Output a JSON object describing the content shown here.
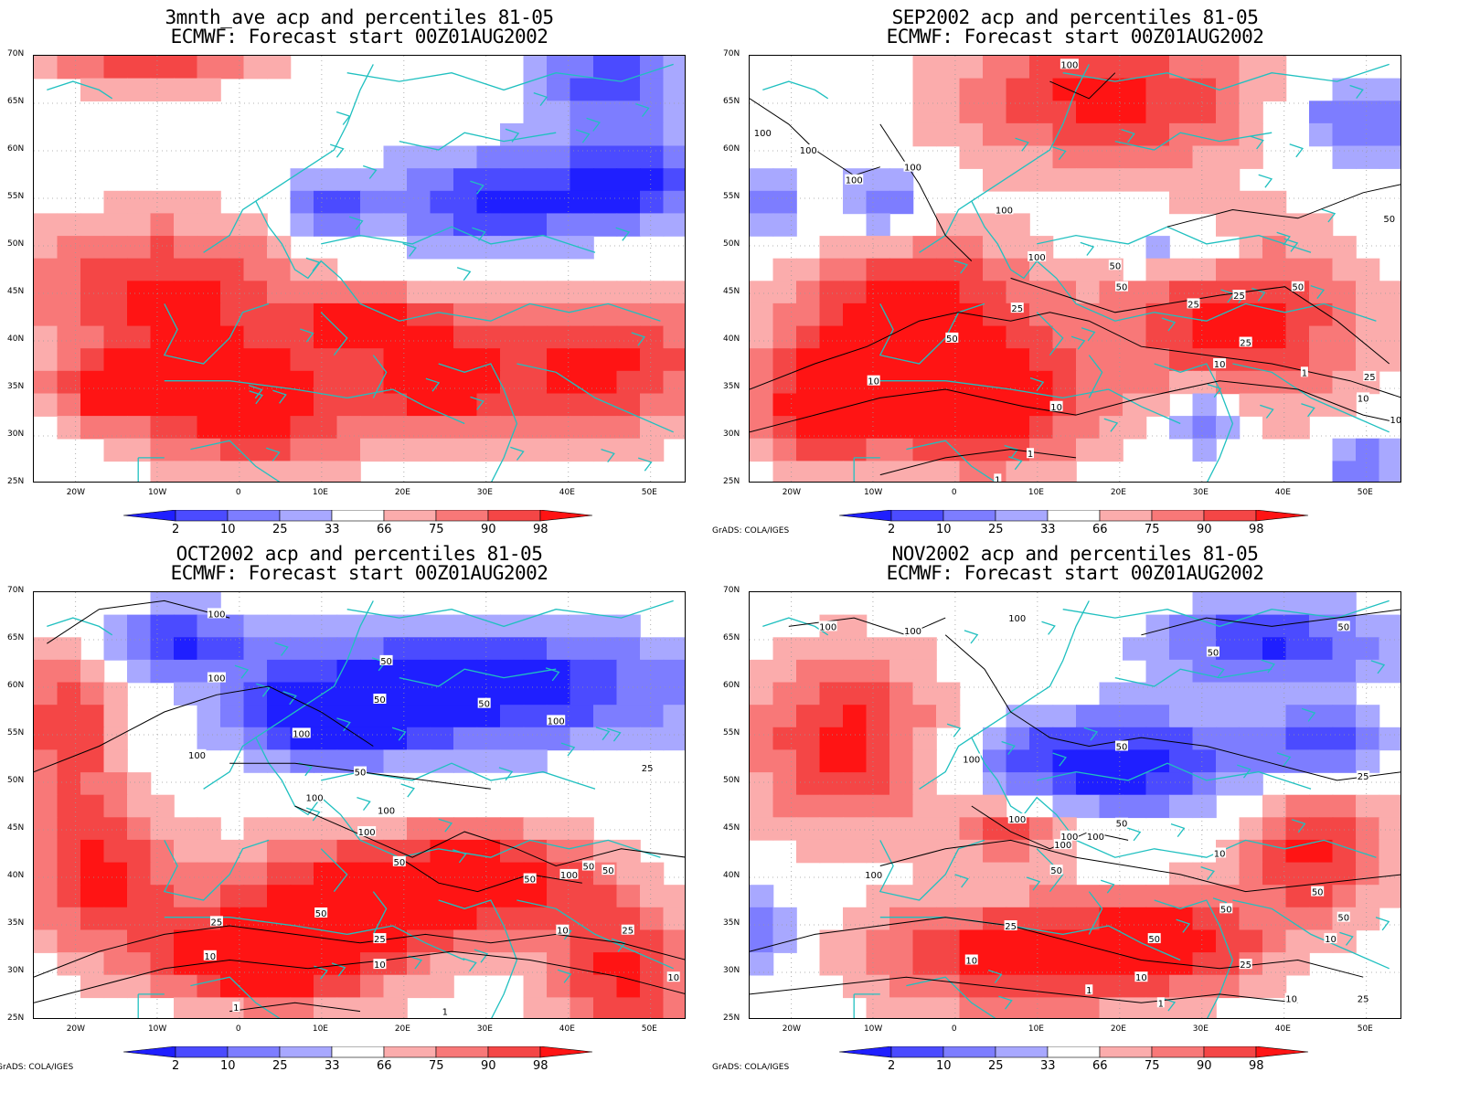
{
  "legend_labels": [
    "2",
    "10",
    "25",
    "33",
    "66",
    "75",
    "90",
    "98"
  ],
  "legend_colors": [
    "#1f1fff",
    "#4b4bff",
    "#7d7dff",
    "#a8a8ff",
    "#ffffff",
    "#fbacac",
    "#f87878",
    "#f44646",
    "#ff1414"
  ],
  "lat_labels": [
    "70N",
    "65N",
    "60N",
    "55N",
    "50N",
    "45N",
    "40N",
    "35N",
    "30N",
    "25N"
  ],
  "lon_labels": [
    "20W",
    "10W",
    "0",
    "10E",
    "20E",
    "30E",
    "40E",
    "50E"
  ],
  "credit": "GrADS: COLA/IGES",
  "panels": [
    {
      "title1": "3mnth_ave acp and percentiles 81-05",
      "title2": "ECMWF: Forecast start 00Z01AUG2002",
      "contour_labels": []
    },
    {
      "title1": "SEP2002 acp and percentiles 81-05",
      "title2": "ECMWF: Forecast start 00Z01AUG2002",
      "contour_labels": [
        "100",
        "100",
        "100",
        "100",
        "100",
        "100",
        "100",
        "50",
        "50",
        "50",
        "50",
        "25",
        "25",
        "25",
        "25",
        "10",
        "10",
        "10",
        "10",
        "1",
        "1",
        "1",
        "50",
        "25",
        "10"
      ]
    },
    {
      "title1": "OCT2002 acp and percentiles 81-05",
      "title2": "ECMWF: Forecast start 00Z01AUG2002",
      "contour_labels": [
        "100",
        "100",
        "100",
        "100",
        "50",
        "50",
        "50",
        "100",
        "100",
        "25",
        "50",
        "100",
        "100",
        "50",
        "50",
        "50",
        "25",
        "25",
        "10",
        "10",
        "25",
        "10",
        "1",
        "1",
        "50",
        "10",
        "100",
        "50"
      ]
    },
    {
      "title1": "NOV2002 acp and percentiles 81-05",
      "title2": "ECMWF: Forecast start 00Z01AUG2002",
      "contour_labels": [
        "100",
        "100",
        "100",
        "50",
        "50",
        "100",
        "50",
        "25",
        "100",
        "100",
        "50",
        "100",
        "100",
        "50",
        "100",
        "50",
        "50",
        "25",
        "10",
        "50",
        "10",
        "25",
        "10",
        "1",
        "25",
        "10",
        "50",
        "10",
        "1"
      ]
    }
  ],
  "credit_visible": [
    false,
    true,
    true,
    true
  ]
}
